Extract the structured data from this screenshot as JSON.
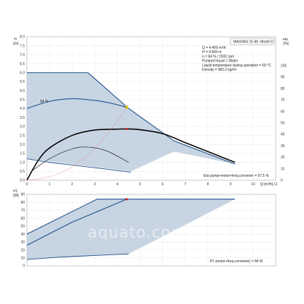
{
  "chart_data": [
    {
      "type": "line",
      "model_title": "MAGNA3 25-80, Model D",
      "info_lines": [
        "Q = 4.409 m³/h",
        "H = 4.069 m",
        "n = 84 % / 2932 rpm",
        "Pumped liquid = Water",
        "Liquid temperature during operation = 60 °C",
        "Density = 983.2 kg/m³"
      ],
      "y_axis_label": "H",
      "y_axis_unit": "[m]",
      "y2_axis_label": "eta",
      "y2_axis_unit": "[%]",
      "x_axis_label": "Q [m³/h]",
      "xlim": [
        0,
        11
      ],
      "ylim": [
        0,
        8
      ],
      "y2lim": [
        0,
        125
      ],
      "x_ticks": [
        "0",
        "1",
        "2",
        "3",
        "4",
        "5",
        "6",
        "7",
        "8",
        "9",
        "10",
        "11"
      ],
      "y_ticks": [
        "0.0",
        "0.5",
        "1.0",
        "1.5",
        "2.0",
        "2.5",
        "3.0",
        "3.5",
        "4.0",
        "4.5",
        "5.0",
        "5.5",
        "6.0",
        "6.5",
        "7.0",
        "7.5",
        "8.0"
      ],
      "y2_ticks": [
        "0",
        "10",
        "20",
        "30",
        "40",
        "50",
        "60",
        "70",
        "80",
        "90",
        "100"
      ],
      "curve_label_84": "84 %",
      "eta_label": "Eta pump+motor+freq.converter = 57.5 %",
      "operating_region": {
        "upper": [
          [
            0,
            6.0
          ],
          [
            2.7,
            6.0
          ],
          [
            4.5,
            4.0
          ],
          [
            6.5,
            2.2
          ],
          [
            9.2,
            0.9
          ]
        ],
        "lower": [
          [
            9.2,
            0.9
          ],
          [
            6.5,
            1.6
          ],
          [
            4.6,
            0.5
          ],
          [
            0,
            1.2
          ]
        ]
      },
      "series": [
        {
          "curve": "max_speed_outline",
          "x": [
            0,
            2.7,
            4.5,
            6.5,
            9.2
          ],
          "y": [
            6.0,
            6.0,
            4.0,
            2.2,
            0.9
          ]
        },
        {
          "curve": "speed_84",
          "x": [
            0,
            1.0,
            2.0,
            3.0,
            3.7,
            4.41
          ],
          "y": [
            4.0,
            4.4,
            4.55,
            4.45,
            4.3,
            4.069
          ]
        },
        {
          "curve": "efficiency",
          "x": [
            0,
            0.5,
            1.0,
            2.0,
            3.0,
            4.0,
            4.4,
            5.0,
            6.0,
            7.0,
            8.0,
            9.2
          ],
          "y": [
            0,
            1.1,
            1.8,
            2.5,
            2.8,
            2.85,
            2.86,
            2.82,
            2.6,
            2.1,
            1.6,
            1.0
          ]
        },
        {
          "curve": "part_load_efficiency",
          "x": [
            0.2,
            1.0,
            2.0,
            2.7,
            3.5,
            4.5
          ],
          "y": [
            0.5,
            1.2,
            1.75,
            1.85,
            1.65,
            1.0
          ]
        },
        {
          "curve": "min_speed",
          "x": [
            0,
            1.0,
            2.0,
            3.0,
            4.6
          ],
          "y": [
            1.2,
            1.0,
            0.85,
            0.7,
            0.45
          ]
        },
        {
          "curve": "system_curve",
          "x": [
            0,
            1.0,
            2.0,
            3.0,
            4.0,
            4.41
          ],
          "y": [
            0,
            0.2,
            0.75,
            1.8,
            3.3,
            4.069
          ]
        }
      ],
      "duty_point": {
        "x": 4.41,
        "y": 4.069
      },
      "eta_point": {
        "x": 4.41,
        "y": 2.86
      }
    },
    {
      "type": "line",
      "y_axis_label": "P1",
      "y_axis_unit": "[W]",
      "xlim": [
        0,
        11
      ],
      "ylim": [
        0,
        90
      ],
      "y_ticks": [
        "0",
        "10",
        "20",
        "30",
        "40",
        "50",
        "60",
        "70",
        "80",
        "90"
      ],
      "p1_label": "P1 (motor+freq.converter) = 84 W",
      "operating_region": {
        "upper": [
          [
            0,
            40
          ],
          [
            3.1,
            84
          ],
          [
            9.2,
            84
          ]
        ],
        "lower": [
          [
            9.2,
            84
          ],
          [
            4.5,
            15
          ],
          [
            3.0,
            13
          ],
          [
            0,
            8
          ]
        ]
      },
      "series": [
        {
          "curve": "max_power",
          "x": [
            0,
            3.1,
            9.2
          ],
          "y": [
            40,
            84,
            84
          ]
        },
        {
          "curve": "power_84",
          "x": [
            0,
            2.0,
            4.41
          ],
          "y": [
            26,
            55,
            84
          ]
        },
        {
          "curve": "min_power",
          "x": [
            0,
            1.5,
            3.0,
            4.5
          ],
          "y": [
            8,
            11,
            13,
            15
          ]
        }
      ],
      "duty_point": {
        "x": 4.41,
        "y": 84
      }
    }
  ],
  "watermark": "aquato.com.ua"
}
